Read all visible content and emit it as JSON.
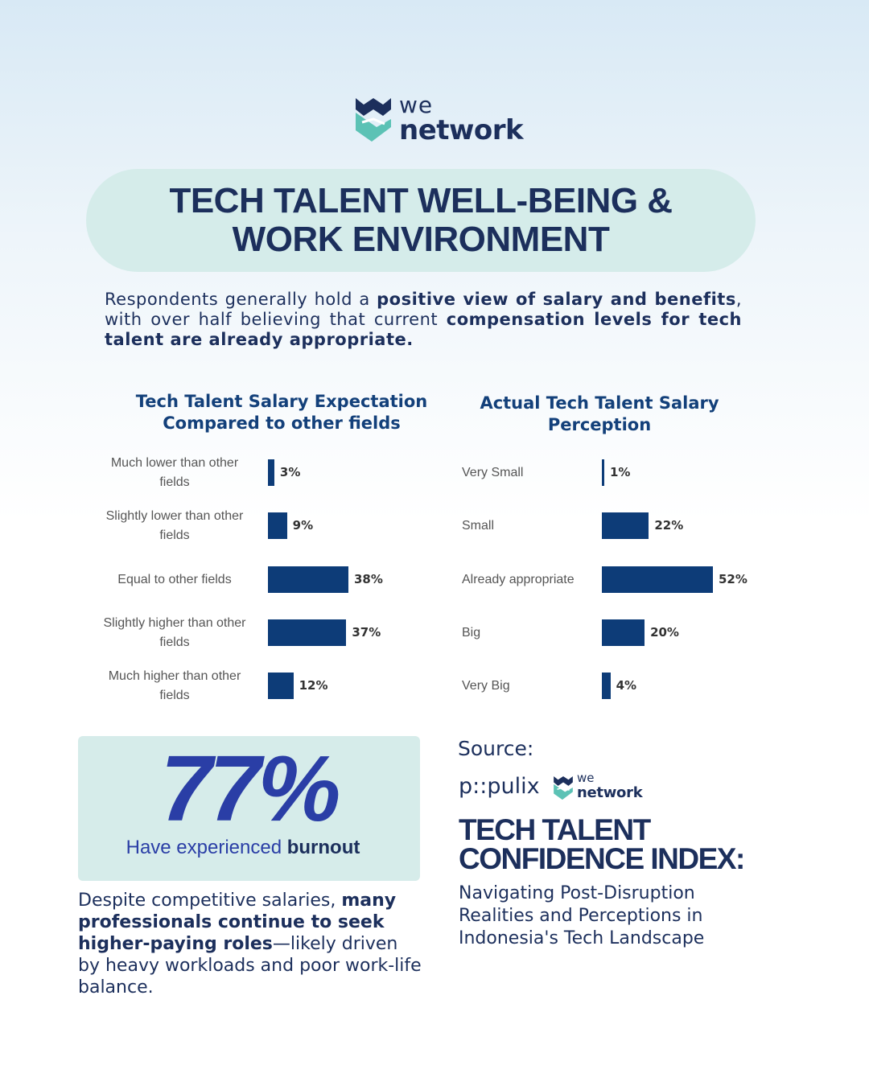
{
  "brand": {
    "we": "we",
    "network": "network"
  },
  "title": {
    "line1": "TECH TALENT WELL-BEING &",
    "line2": "WORK ENVIRONMENT"
  },
  "intro": {
    "p1": "Respondents generally hold a ",
    "b1": "positive view of salary and benefits",
    "p2": ", with over half believing that current ",
    "b2": "compensation levels for tech talent are already appropriate."
  },
  "chart_data": [
    {
      "type": "bar",
      "orientation": "horizontal",
      "title": "Tech Talent Salary Expectation Compared to other fields",
      "title_line1": "Tech Talent Salary Expectation",
      "title_line2": "Compared to other fields",
      "categories": [
        "Much lower than other fields",
        "Slightly lower than other fields",
        "Equal to other fields",
        "Slightly higher than other fields",
        "Much higher than other fields"
      ],
      "category_lines": [
        [
          "Much lower than other",
          "fields"
        ],
        [
          "Slightly lower than other",
          "fields"
        ],
        [
          "Equal to other fields"
        ],
        [
          "Slightly higher than other",
          "fields"
        ],
        [
          "Much higher than other",
          "fields"
        ]
      ],
      "values": [
        3,
        9,
        38,
        37,
        12
      ],
      "value_labels": [
        "3%",
        "9%",
        "38%",
        "37%",
        "12%"
      ],
      "unit": "%"
    },
    {
      "type": "bar",
      "orientation": "horizontal",
      "title": "Actual Tech Talent Salary Perception",
      "title_line1": "Actual Tech Talent Salary",
      "title_line2": "Perception",
      "categories": [
        "Very Small",
        "Small",
        "Already appropriate",
        "Big",
        "Very Big"
      ],
      "values": [
        1,
        22,
        52,
        20,
        4
      ],
      "value_labels": [
        "1%",
        "22%",
        "52%",
        "20%",
        "4%"
      ],
      "unit": "%"
    }
  ],
  "stat": {
    "number": "77%",
    "caption_plain": "Have experienced ",
    "caption_bold": "burnout"
  },
  "conclusion": {
    "p1": "Despite competitive salaries, ",
    "b1": "many professionals continue to seek higher-paying roles",
    "p2": "—likely driven by heavy workloads and poor work-life balance."
  },
  "source": {
    "label": "Source:",
    "populix": "p::pulix",
    "we": "we",
    "network": "network",
    "report_title_line1": "TECH TALENT",
    "report_title_line2": "CONFIDENCE INDEX:",
    "report_subtitle": "Navigating Post-Disruption Realities and Perceptions in Indonesia's Tech Landscape"
  },
  "colors": {
    "navy": "#1c2f5c",
    "bar": "#0d3c78",
    "accent_blue": "#2a3ea6",
    "mint": "#d5ecea"
  },
  "icons": [
    "we-network-logo-icon"
  ]
}
